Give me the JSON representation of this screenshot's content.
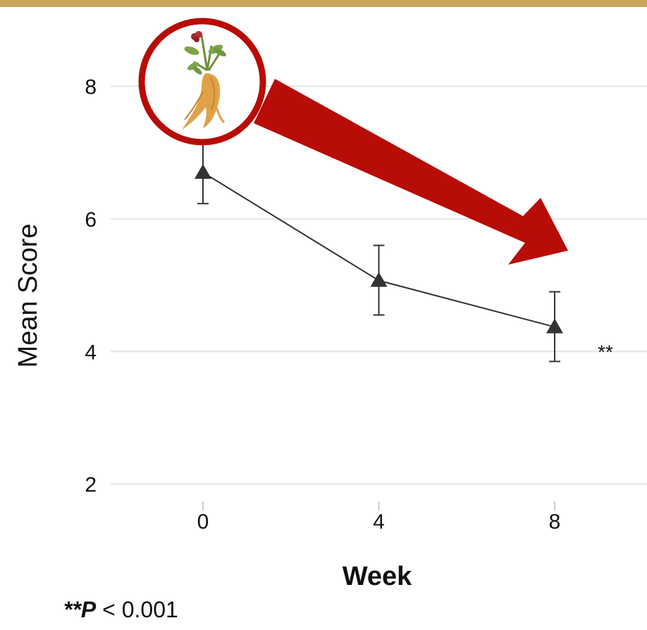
{
  "colors": {
    "top_bar": "#c9a55a",
    "line": "#333333",
    "arrow": "#b80c06",
    "grid": "#e4e4e4",
    "badge_ring": "#b80c06"
  },
  "icons": {
    "badge": "ginseng-root-icon",
    "trend": "downward-arrow-icon"
  },
  "chart_data": {
    "type": "line",
    "title": "",
    "xlabel": "Week",
    "ylabel": "Mean Score",
    "x_ticks": [
      0,
      4,
      8
    ],
    "y_ticks": [
      2,
      4,
      6,
      8
    ],
    "xlim": [
      -2.1,
      10.1
    ],
    "ylim": [
      1.7,
      9.3
    ],
    "grid": "horizontal",
    "series": [
      {
        "marker": "triangle",
        "x": [
          0,
          4,
          8
        ],
        "y": [
          6.7,
          5.07,
          4.37
        ],
        "err_low": [
          6.23,
          4.55,
          3.85
        ],
        "err_high": [
          7.15,
          5.6,
          4.9
        ]
      }
    ],
    "annotations": [
      {
        "x": 8,
        "text": "**"
      }
    ]
  },
  "footnote": {
    "stars": "**",
    "p": "P",
    "rest": " < 0.001"
  }
}
